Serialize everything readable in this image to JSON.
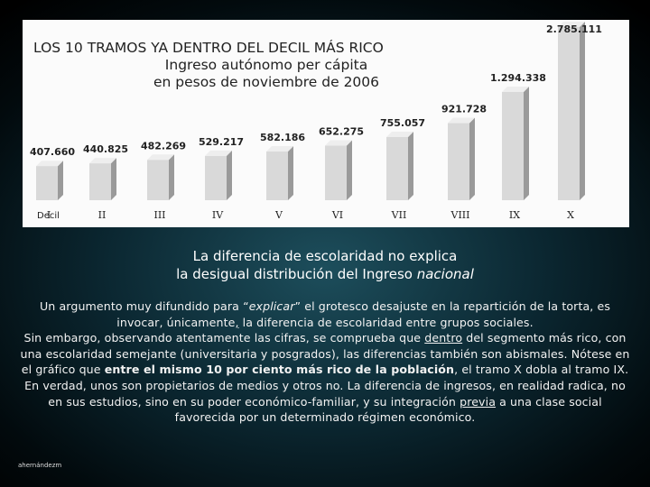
{
  "chart_data": {
    "type": "bar",
    "title": "LOS 10 TRAMOS YA DENTRO DEL DECIL MÁS RICO",
    "subtitle_lines": [
      "Ingreso autónomo per cápita",
      "en pesos de noviembre de 2006"
    ],
    "xlabel": "Decil",
    "ylabel": "",
    "categories": [
      "I",
      "II",
      "III",
      "IV",
      "V",
      "VI",
      "VII",
      "VIII",
      "IX",
      "X"
    ],
    "values": [
      407660,
      440825,
      482269,
      529217,
      582186,
      652275,
      755057,
      921728,
      1294338,
      2785111
    ],
    "value_labels": [
      "407.660",
      "440.825",
      "482.269",
      "529.217",
      "582.186",
      "652.275",
      "755.057",
      "921.728",
      "1.294.338",
      "2.785.111"
    ],
    "grid": false,
    "legend": "none"
  },
  "slide": {
    "heading_line1": "La diferencia de escolaridad no explica",
    "heading_line2_prefix": "la desigual distribución del Ingreso ",
    "heading_line2_italic": "nacional",
    "p1_a": "Un argumento muy difundido para “",
    "p1_b": "explicar",
    "p1_c": "” el grotesco desajuste en la repartición de la torta, es invocar, únicamente",
    "p1_d": ",",
    "p1_e": " la diferencia de escolaridad entre grupos sociales.",
    "p2_a": "Sin embargo, observando atentamente las cifras, se comprueba que ",
    "p2_b": "dentro",
    "p2_c": " del segmento más rico, con una escolaridad semejante (universitaria y posgrados), las diferencias también son abismales. Nótese en el gráfico que ",
    "p2_d": "entre el mismo 10 por ciento más rico de la población",
    "p2_e": ", el tramo X dobla al tramo IX.",
    "p3_a": "En verdad, unos son propietarios de medios y otros no. La diferencia de ingresos, en realidad radica, no en sus estudios, sino en su poder económico-familiar, y su integración ",
    "p3_b": "previa",
    "p3_c": " a una clase social favorecida por un determinado régimen económico.",
    "author": "ahernándezm"
  },
  "colors": {
    "bar_front": "#d9d9d9",
    "bar_side": "#9a9a9a",
    "bar_top": "#eeeeee",
    "panel_bg": "#fbfbfb"
  }
}
